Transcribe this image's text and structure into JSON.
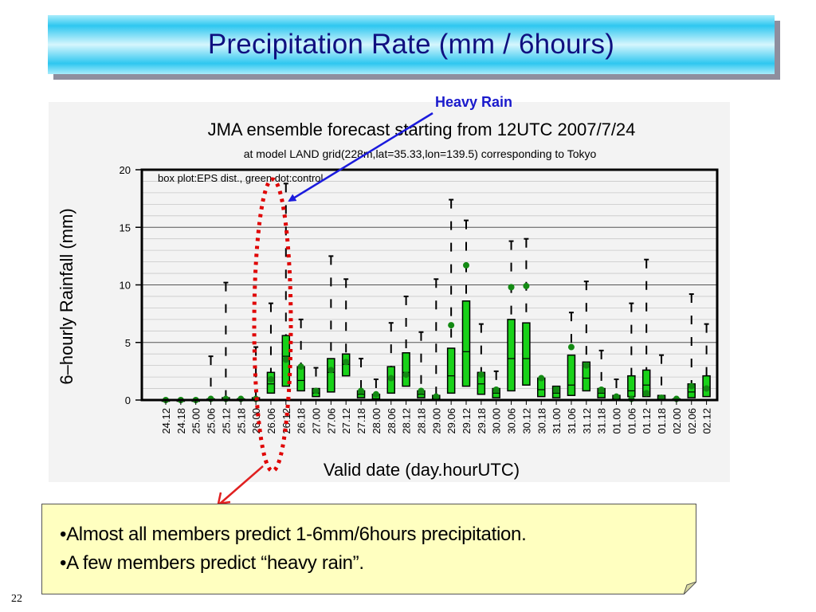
{
  "slide": {
    "title": "Precipitation Rate (mm / 6hours)",
    "heavy_rain_label": "Heavy Rain",
    "bullets": [
      "•Almost all members predict 1-6mm/6hours precipitation.",
      "•A few members predict “heavy rain”."
    ],
    "page_number": "22",
    "colors": {
      "title_text": "#101080",
      "title_gradient": "#2ec7f0",
      "heavy_rain_label": "#1a1acc",
      "arrow_blue": "#1a1add",
      "arrow_red": "#e02020",
      "highlight_dotted_ellipse": "#e00000",
      "note_background": "#ffffc0"
    }
  },
  "chart_data": {
    "type": "box",
    "title": "JMA ensemble forecast starting from 12UTC 2007/7/24",
    "subtitle": "at model LAND grid(228m,lat=35.33,lon=139.5) corresponding to Tokyo",
    "legend_note": "box plot:EPS dist., green dot:control",
    "xlabel": "Valid date (day.hourUTC)",
    "ylabel": "6–hourly Rainfall (mm)",
    "ylim": [
      0,
      20
    ],
    "yticks": [
      "0",
      "5",
      "10",
      "15",
      "20"
    ],
    "grid": "horizontal",
    "categories": [
      "24.12",
      "24.18",
      "25.00",
      "25.06",
      "25.12",
      "25.18",
      "26.00",
      "26.06",
      "26.12",
      "26.18",
      "27.00",
      "27.06",
      "27.12",
      "27.18",
      "28.00",
      "28.06",
      "28.12",
      "28.18",
      "29.00",
      "29.06",
      "29.12",
      "29.18",
      "30.00",
      "30.06",
      "30.12",
      "30.18",
      "31.00",
      "31.06",
      "31.12",
      "31.18",
      "01.00",
      "01.06",
      "01.12",
      "01.18",
      "02.00",
      "02.06",
      "02.12"
    ],
    "series": [
      {
        "whisker_high": [
          0,
          0.1,
          0.1,
          3.8,
          10.2,
          0.3,
          4.6,
          8.4,
          18.8,
          7.0,
          2.8,
          12.5,
          10.5,
          3.6,
          1.8,
          6.7,
          9.0,
          5.9,
          10.5,
          17.4,
          15.6,
          6.6,
          2.5,
          13.8,
          14.0,
          1.6,
          1.5,
          7.6,
          10.3,
          4.3,
          1.8,
          8.4,
          12.2,
          3.9,
          0.2,
          9.2,
          6.6
        ],
        "q3": [
          0,
          0,
          0,
          0.1,
          0.2,
          0.1,
          0.2,
          2.4,
          5.6,
          2.9,
          1.0,
          3.6,
          4.0,
          0.8,
          0.5,
          2.9,
          4.1,
          0.8,
          0.4,
          4.5,
          8.6,
          2.4,
          1.0,
          7.0,
          6.7,
          1.9,
          1.2,
          3.9,
          3.3,
          1.0,
          0.4,
          2.1,
          2.6,
          0.4,
          0.1,
          1.4,
          2.1
        ],
        "median": [
          0,
          0,
          0,
          0.05,
          0.1,
          0.05,
          0.1,
          1.4,
          3.8,
          1.7,
          0.6,
          2.4,
          3.1,
          0.5,
          0.3,
          1.9,
          2.4,
          0.5,
          0.2,
          2.1,
          4.2,
          1.4,
          0.6,
          3.6,
          3.6,
          0.9,
          0.6,
          1.3,
          1.9,
          0.6,
          0.2,
          0.8,
          1.3,
          0.2,
          0.05,
          0.7,
          1.1
        ],
        "q1": [
          0,
          0,
          0,
          0,
          0,
          0,
          0,
          0.6,
          1.2,
          0.8,
          0.3,
          0.7,
          2.1,
          0.2,
          0.1,
          0.6,
          1.2,
          0.2,
          0.1,
          0.6,
          1.2,
          0.5,
          0.2,
          0.8,
          1.3,
          0.3,
          0.2,
          0.4,
          0.8,
          0.2,
          0.1,
          0.3,
          0.3,
          0.1,
          0,
          0.2,
          0.3
        ],
        "control": [
          0,
          0,
          0,
          0.1,
          0.1,
          0.1,
          0.1,
          1.8,
          3.5,
          2.9,
          0.8,
          2.6,
          3.3,
          0.8,
          0.5,
          1.9,
          2.2,
          0.8,
          0.3,
          6.5,
          11.7,
          2.2,
          0.9,
          9.8,
          9.9,
          1.9,
          0.9,
          4.6,
          3.0,
          0.9,
          0.3,
          0.1,
          0.6,
          0.2,
          0.1,
          1.2,
          1.0
        ]
      }
    ],
    "highlight": {
      "category": "26.12",
      "label": "Heavy Rain"
    }
  }
}
